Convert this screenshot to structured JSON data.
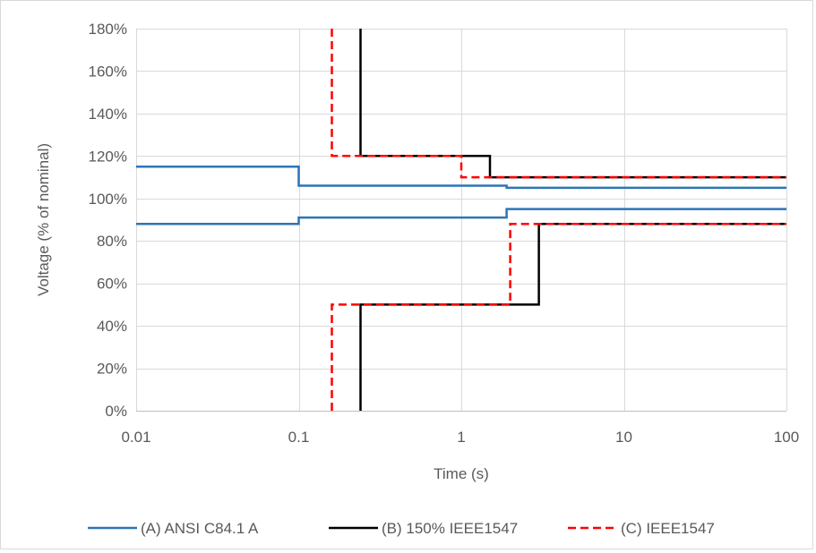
{
  "chart_data": {
    "type": "line",
    "title": "",
    "xlabel": "Time (s)",
    "ylabel": "Voltage (% of nominal)",
    "x_scale": "log",
    "xlim": [
      0.01,
      100
    ],
    "ylim": [
      0,
      180
    ],
    "x_ticks": [
      0.01,
      0.1,
      1,
      10,
      100
    ],
    "x_tick_labels": [
      "0.01",
      "0.1",
      "1",
      "10",
      "100"
    ],
    "y_ticks": [
      0,
      20,
      40,
      60,
      80,
      100,
      120,
      140,
      160,
      180
    ],
    "y_tick_labels": [
      "0%",
      "20%",
      "40%",
      "60%",
      "80%",
      "100%",
      "120%",
      "140%",
      "160%",
      "180%"
    ],
    "grid": "horizontal",
    "legend_position": "bottom",
    "series": [
      {
        "name": "(A) ANSI C84.1 A",
        "color": "#2e75b6",
        "dash": "solid",
        "lines": [
          [
            [
              0.01,
              115
            ],
            [
              0.1,
              115
            ],
            [
              0.1,
              106
            ],
            [
              1.9,
              106
            ],
            [
              1.9,
              105
            ],
            [
              100,
              105
            ]
          ],
          [
            [
              0.01,
              88
            ],
            [
              0.1,
              88
            ],
            [
              0.1,
              91
            ],
            [
              1.9,
              91
            ],
            [
              1.9,
              95
            ],
            [
              100,
              95
            ]
          ]
        ]
      },
      {
        "name": "(B) 150% IEEE1547",
        "color": "#000000",
        "dash": "solid",
        "lines": [
          [
            [
              0.24,
              180
            ],
            [
              0.24,
              120
            ],
            [
              1.5,
              120
            ],
            [
              1.5,
              110
            ],
            [
              100,
              110
            ]
          ],
          [
            [
              0.24,
              0
            ],
            [
              0.24,
              50
            ],
            [
              3,
              50
            ],
            [
              3,
              88
            ],
            [
              100,
              88
            ]
          ]
        ]
      },
      {
        "name": "(C) IEEE1547",
        "color": "#ff0000",
        "dash": "dashed",
        "lines": [
          [
            [
              0.16,
              180
            ],
            [
              0.16,
              120
            ],
            [
              1,
              120
            ],
            [
              1,
              110
            ],
            [
              100,
              110
            ]
          ],
          [
            [
              0.16,
              0
            ],
            [
              0.16,
              50
            ],
            [
              2,
              50
            ],
            [
              2,
              88
            ],
            [
              100,
              88
            ]
          ]
        ]
      }
    ]
  }
}
